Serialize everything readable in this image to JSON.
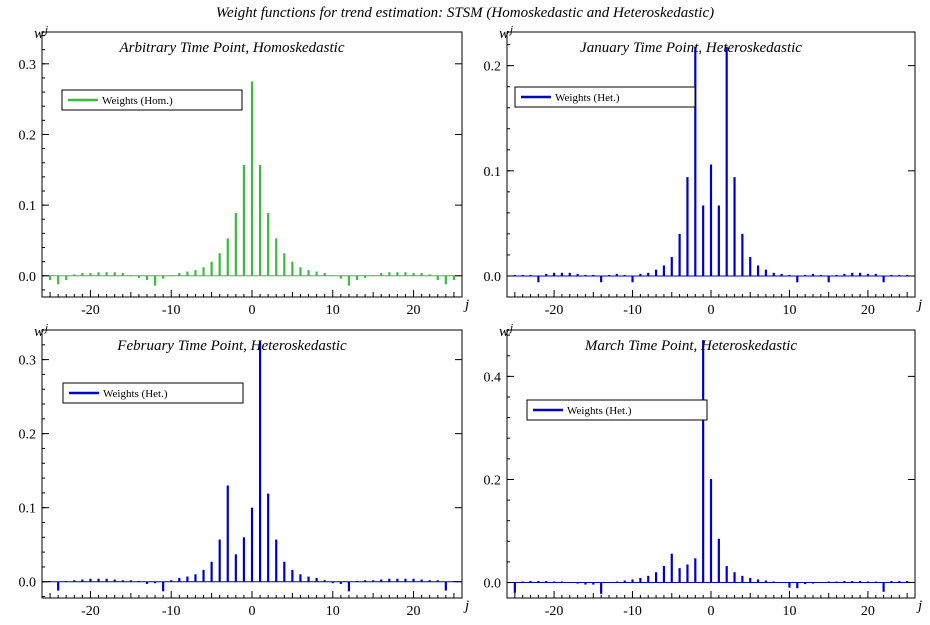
{
  "figure_title": "Weight functions for trend estimation: STSM (Homoskedastic and Heteroskedastic)",
  "colors": {
    "homoskedastic": "#3dbb3d",
    "heteroskedastic": "#0000cc"
  },
  "chart_data": [
    {
      "type": "bar",
      "title": "Arbitrary Time Point, Homoskedastic",
      "ylabel_var": "w",
      "ylabel_sub": "j",
      "xlabel": "j",
      "xlim": [
        -26,
        26
      ],
      "ylim": [
        -0.03,
        0.345
      ],
      "xticks": [
        -20,
        -10,
        0,
        10,
        20
      ],
      "yticks": [
        0.0,
        0.1,
        0.2,
        0.3
      ],
      "ytick_labels": [
        "0.0",
        "0.1",
        "0.2",
        "0.3"
      ],
      "color": "#3dbb3d",
      "legend": {
        "label": "Weights (Hom.)",
        "position": "top-left"
      },
      "series": [
        {
          "name": "Weights (Hom.)",
          "x": [
            -25,
            -24,
            -23,
            -22,
            -21,
            -20,
            -19,
            -18,
            -17,
            -16,
            -15,
            -14,
            -13,
            -12,
            -11,
            -10,
            -9,
            -8,
            -7,
            -6,
            -5,
            -4,
            -3,
            -2,
            -1,
            0,
            1,
            2,
            3,
            4,
            5,
            6,
            7,
            8,
            9,
            10,
            11,
            12,
            13,
            14,
            15,
            16,
            17,
            18,
            19,
            20,
            21,
            22,
            23,
            24,
            25
          ],
          "values": [
            -0.006,
            -0.012,
            -0.006,
            0.002,
            0.004,
            0.004,
            0.005,
            0.005,
            0.005,
            0.004,
            0.001,
            -0.003,
            -0.006,
            -0.014,
            -0.004,
            0.001,
            0.004,
            0.006,
            0.008,
            0.012,
            0.02,
            0.032,
            0.053,
            0.089,
            0.157,
            0.275,
            0.157,
            0.089,
            0.053,
            0.032,
            0.02,
            0.012,
            0.008,
            0.006,
            0.004,
            0.001,
            -0.004,
            -0.014,
            -0.006,
            -0.003,
            0.001,
            0.004,
            0.005,
            0.005,
            0.005,
            0.004,
            0.004,
            0.002,
            -0.006,
            -0.012,
            -0.006
          ]
        }
      ]
    },
    {
      "type": "bar",
      "title": "January Time Point, Heteroskedastic",
      "ylabel_var": "w",
      "ylabel_sub": "j",
      "xlabel": "j",
      "xlim": [
        -26,
        26
      ],
      "ylim": [
        -0.02,
        0.232
      ],
      "xticks": [
        -20,
        -10,
        0,
        10,
        20
      ],
      "yticks": [
        0.0,
        0.1,
        0.2
      ],
      "ytick_labels": [
        "0.0",
        "0.1",
        "0.2"
      ],
      "color": "#0000cc",
      "legend": {
        "label": "Weights (Het.)",
        "position": "top-left"
      },
      "series": [
        {
          "name": "Weights (Het.)",
          "x": [
            -25,
            -24,
            -23,
            -22,
            -21,
            -20,
            -19,
            -18,
            -17,
            -16,
            -15,
            -14,
            -13,
            -12,
            -11,
            -10,
            -9,
            -8,
            -7,
            -6,
            -5,
            -4,
            -3,
            -2,
            -1,
            0,
            1,
            2,
            3,
            4,
            5,
            6,
            7,
            8,
            9,
            10,
            11,
            12,
            13,
            14,
            15,
            16,
            17,
            18,
            19,
            20,
            21,
            22,
            23,
            24,
            25
          ],
          "values": [
            0.001,
            0.001,
            0.001,
            -0.006,
            0.002,
            0.003,
            0.003,
            0.003,
            0.002,
            0.001,
            0.001,
            -0.006,
            0.001,
            0.002,
            0.001,
            -0.006,
            0.002,
            0.003,
            0.006,
            0.01,
            0.018,
            0.04,
            0.094,
            0.218,
            0.067,
            0.106,
            0.067,
            0.218,
            0.094,
            0.04,
            0.018,
            0.01,
            0.006,
            0.003,
            0.002,
            0.001,
            -0.006,
            0.001,
            0.002,
            0.001,
            -0.006,
            0.001,
            0.002,
            0.003,
            0.003,
            0.002,
            0.002,
            -0.006,
            0.001,
            0.001,
            0.001
          ]
        }
      ]
    },
    {
      "type": "bar",
      "title": "February Time Point, Heteroskedastic",
      "ylabel_var": "w",
      "ylabel_sub": "j",
      "xlabel": "j",
      "xlim": [
        -26,
        26
      ],
      "ylim": [
        -0.022,
        0.34
      ],
      "xticks": [
        -20,
        -10,
        0,
        10,
        20
      ],
      "yticks": [
        0.0,
        0.1,
        0.2,
        0.3
      ],
      "ytick_labels": [
        "0.0",
        "0.1",
        "0.2",
        "0.3"
      ],
      "color": "#0000cc",
      "legend": {
        "label": "Weights (Het.)",
        "position": "top-left"
      },
      "series": [
        {
          "name": "Weights (Het.)",
          "x": [
            -25,
            -24,
            -23,
            -22,
            -21,
            -20,
            -19,
            -18,
            -17,
            -16,
            -15,
            -14,
            -13,
            -12,
            -11,
            -10,
            -9,
            -8,
            -7,
            -6,
            -5,
            -4,
            -3,
            -2,
            -1,
            0,
            1,
            2,
            3,
            4,
            5,
            6,
            7,
            8,
            9,
            10,
            11,
            12,
            13,
            14,
            15,
            16,
            17,
            18,
            19,
            20,
            21,
            22,
            23,
            24,
            25
          ],
          "values": [
            0.001,
            -0.012,
            0.001,
            0.002,
            0.003,
            0.004,
            0.004,
            0.004,
            0.003,
            0.002,
            0.002,
            0.001,
            -0.003,
            -0.002,
            -0.013,
            0.002,
            0.005,
            0.007,
            0.01,
            0.016,
            0.027,
            0.057,
            0.13,
            0.037,
            0.06,
            0.1,
            0.325,
            0.119,
            0.057,
            0.027,
            0.016,
            0.01,
            0.007,
            0.005,
            0.002,
            -0.002,
            -0.003,
            -0.013,
            0.001,
            0.002,
            0.002,
            0.003,
            0.004,
            0.004,
            0.004,
            0.004,
            0.003,
            0.002,
            0.002,
            -0.012,
            0.001
          ]
        }
      ]
    },
    {
      "type": "bar",
      "title": "March Time Point, Heteroskedastic",
      "ylabel_var": "w",
      "ylabel_sub": "j",
      "xlabel": "j",
      "xlim": [
        -26,
        26
      ],
      "ylim": [
        -0.03,
        0.49
      ],
      "xticks": [
        -20,
        -10,
        0,
        10,
        20
      ],
      "yticks": [
        0.0,
        0.2,
        0.4
      ],
      "ytick_labels": [
        "0.0",
        "0.2",
        "0.4"
      ],
      "color": "#0000cc",
      "legend": {
        "label": "Weights (Het.)",
        "position": "top-left"
      },
      "series": [
        {
          "name": "Weights (Het.)",
          "x": [
            -25,
            -24,
            -23,
            -22,
            -21,
            -20,
            -19,
            -18,
            -17,
            -16,
            -15,
            -14,
            -13,
            -12,
            -11,
            -10,
            -9,
            -8,
            -7,
            -6,
            -5,
            -4,
            -3,
            -2,
            -1,
            0,
            1,
            2,
            3,
            4,
            5,
            6,
            7,
            8,
            9,
            10,
            11,
            12,
            13,
            14,
            15,
            16,
            17,
            18,
            19,
            20,
            21,
            22,
            23,
            24,
            25
          ],
          "values": [
            -0.02,
            0.002,
            0.003,
            0.003,
            0.003,
            0.002,
            0.002,
            0.001,
            -0.002,
            -0.004,
            -0.004,
            -0.022,
            0.001,
            0.002,
            0.004,
            0.006,
            0.009,
            0.013,
            0.02,
            0.032,
            0.056,
            0.028,
            0.035,
            0.047,
            0.47,
            0.201,
            0.085,
            0.032,
            0.02,
            0.013,
            0.009,
            0.006,
            0.004,
            0.002,
            0.001,
            -0.01,
            -0.011,
            -0.003,
            -0.002,
            0.001,
            0.002,
            0.002,
            0.003,
            0.003,
            0.003,
            0.002,
            0.002,
            -0.018,
            0.003,
            0.003,
            0.003
          ]
        }
      ]
    }
  ]
}
